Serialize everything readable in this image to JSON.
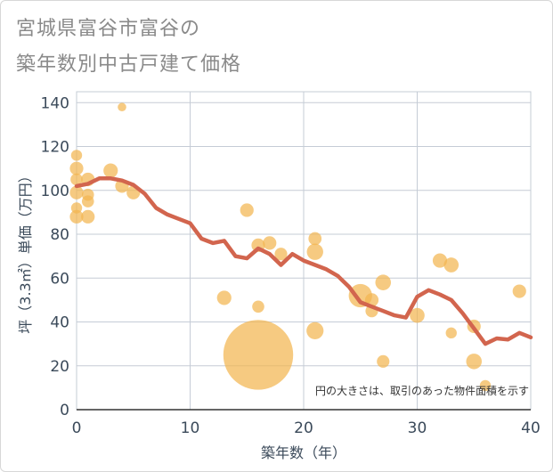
{
  "title_lines": [
    "宮城県富谷市富谷の",
    "築年数別中古戸建て価格"
  ],
  "note": "円の大きさは、取引のあった物件面積を示す",
  "colors": {
    "bubble": "#f2b650",
    "line": "#d2654e",
    "grid": "#c5ccd6",
    "axis_text": "#3b4a5a"
  },
  "chart_data": {
    "type": "scatter",
    "xlabel": "築年数（年）",
    "ylabel": "坪（3.3㎡）単価（万円）",
    "xlim": [
      0,
      40
    ],
    "ylim": [
      0,
      145
    ],
    "xticks": [
      0,
      10,
      20,
      30,
      40
    ],
    "yticks": [
      0,
      20,
      40,
      60,
      80,
      100,
      120,
      140
    ],
    "grid": true,
    "bubbles": [
      {
        "x": 0,
        "y": 116,
        "size": 1
      },
      {
        "x": 0,
        "y": 110,
        "size": 1.5
      },
      {
        "x": 0,
        "y": 105,
        "size": 1.2
      },
      {
        "x": 0,
        "y": 99,
        "size": 1.5
      },
      {
        "x": 0,
        "y": 92,
        "size": 1
      },
      {
        "x": 0,
        "y": 88,
        "size": 1.5
      },
      {
        "x": 1,
        "y": 105,
        "size": 1.5
      },
      {
        "x": 1,
        "y": 98,
        "size": 1.2
      },
      {
        "x": 1,
        "y": 95,
        "size": 1.2
      },
      {
        "x": 1,
        "y": 88,
        "size": 1.5
      },
      {
        "x": 3,
        "y": 109,
        "size": 1.7
      },
      {
        "x": 4,
        "y": 138,
        "size": 0.6
      },
      {
        "x": 4,
        "y": 102,
        "size": 1.5
      },
      {
        "x": 5,
        "y": 99,
        "size": 1.5
      },
      {
        "x": 13,
        "y": 51,
        "size": 1.7
      },
      {
        "x": 15,
        "y": 91,
        "size": 1.5
      },
      {
        "x": 16,
        "y": 75,
        "size": 1.5
      },
      {
        "x": 16,
        "y": 47,
        "size": 1.2
      },
      {
        "x": 16,
        "y": 25,
        "size": 40
      },
      {
        "x": 17,
        "y": 76,
        "size": 1.5
      },
      {
        "x": 18,
        "y": 71,
        "size": 1.3
      },
      {
        "x": 21,
        "y": 78,
        "size": 1.4
      },
      {
        "x": 21,
        "y": 72,
        "size": 2.2
      },
      {
        "x": 21,
        "y": 36,
        "size": 2.4
      },
      {
        "x": 25,
        "y": 52,
        "size": 4.5
      },
      {
        "x": 26,
        "y": 50,
        "size": 1.5
      },
      {
        "x": 26,
        "y": 45,
        "size": 1.3
      },
      {
        "x": 27,
        "y": 58,
        "size": 2.0
      },
      {
        "x": 27,
        "y": 22,
        "size": 1.3
      },
      {
        "x": 30,
        "y": 43,
        "size": 1.8
      },
      {
        "x": 32,
        "y": 68,
        "size": 1.7
      },
      {
        "x": 33,
        "y": 66,
        "size": 1.8
      },
      {
        "x": 33,
        "y": 35,
        "size": 1.0
      },
      {
        "x": 35,
        "y": 38,
        "size": 1.5
      },
      {
        "x": 35,
        "y": 22,
        "size": 2.0
      },
      {
        "x": 36,
        "y": 11,
        "size": 1.0
      },
      {
        "x": 39,
        "y": 54,
        "size": 1.5
      }
    ],
    "trend": {
      "x": [
        0,
        1,
        2,
        3,
        4,
        5,
        6,
        7,
        8,
        9,
        10,
        11,
        12,
        13,
        14,
        15,
        16,
        17,
        18,
        19,
        20,
        21,
        22,
        23,
        24,
        25,
        26,
        27,
        28,
        29,
        30,
        31,
        32,
        33,
        34,
        35,
        36,
        37,
        38,
        39,
        40
      ],
      "y": [
        102,
        103,
        105.5,
        105.5,
        104.5,
        102.5,
        98.5,
        92,
        89,
        87,
        85,
        78,
        76,
        77,
        70,
        69,
        73.5,
        71,
        66,
        71,
        68,
        66,
        64,
        61,
        56,
        49,
        47,
        45,
        43,
        42,
        51.5,
        54.5,
        52.5,
        50,
        44,
        37,
        30,
        32.5,
        32,
        35,
        33
      ]
    }
  }
}
